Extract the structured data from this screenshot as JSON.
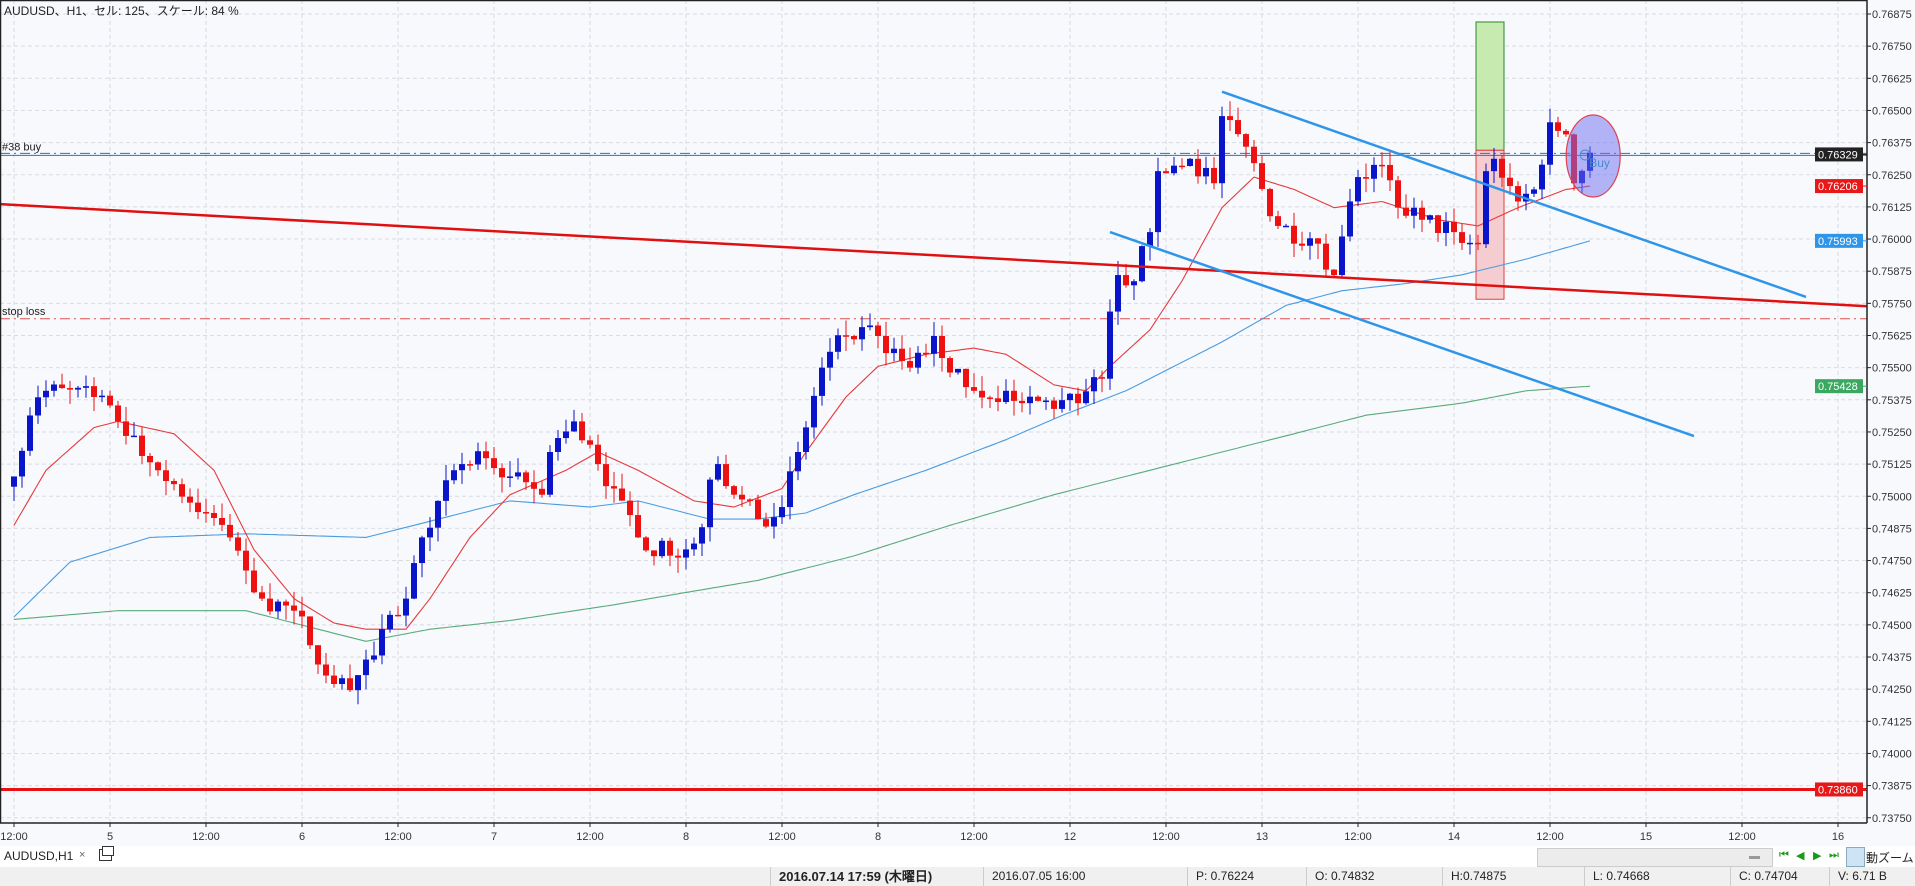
{
  "header": {
    "title": "AUDUSD、H1、セル: 125、スケール: 84 %"
  },
  "colors": {
    "bull": "#0a14c8",
    "bear": "#ee1111",
    "ma_fast": "#e8393b",
    "ma_mid": "#4a9be0",
    "ma_slow": "#5aaa7a",
    "trend_blue": "#2f95e8",
    "trend_red": "#e01010"
  },
  "chart_data": {
    "type": "candlestick",
    "symbol": "AUDUSD",
    "timeframe": "H1",
    "price_range": [
      0.7375,
      0.76875
    ],
    "price_ticks": [
      "0.76875",
      "0.76750",
      "0.76625",
      "0.76500",
      "0.76375",
      "0.76250",
      "0.76125",
      "0.76000",
      "0.75875",
      "0.75750",
      "0.75625",
      "0.75500",
      "0.75375",
      "0.75250",
      "0.75125",
      "0.75000",
      "0.74875",
      "0.74750",
      "0.74625",
      "0.74500",
      "0.74375",
      "0.74250",
      "0.74125",
      "0.74000",
      "0.73875",
      "0.73750"
    ],
    "time_labels": [
      "12:00",
      "5",
      "12:00",
      "6",
      "12:00",
      "7",
      "12:00",
      "8",
      "12:00",
      "8",
      "12:00",
      "12",
      "12:00",
      "13",
      "12:00",
      "14",
      "12:00",
      "15",
      "12:00",
      "16"
    ],
    "close_waypoints": [
      [
        0,
        0.75077
      ],
      [
        2,
        0.75314
      ],
      [
        4,
        0.7541
      ],
      [
        10,
        0.75386
      ],
      [
        13,
        0.75291
      ],
      [
        18,
        0.75101
      ],
      [
        24,
        0.74935
      ],
      [
        27,
        0.7484
      ],
      [
        31,
        0.74602
      ],
      [
        35,
        0.74555
      ],
      [
        40,
        0.7427
      ],
      [
        42,
        0.74246
      ],
      [
        44,
        0.74365
      ],
      [
        46,
        0.74483
      ],
      [
        49,
        0.74602
      ],
      [
        51,
        0.7484
      ],
      [
        53,
        0.74982
      ],
      [
        56,
        0.75125
      ],
      [
        59,
        0.75148
      ],
      [
        62,
        0.75077
      ],
      [
        66,
        0.75006
      ],
      [
        67,
        0.75172
      ],
      [
        70,
        0.75291
      ],
      [
        73,
        0.75125
      ],
      [
        75,
        0.7503
      ],
      [
        78,
        0.7484
      ],
      [
        82,
        0.74769
      ],
      [
        85,
        0.74816
      ],
      [
        88,
        0.75125
      ],
      [
        90,
        0.75006
      ],
      [
        93,
        0.74911
      ],
      [
        96,
        0.74958
      ],
      [
        98,
        0.75172
      ],
      [
        101,
        0.755
      ],
      [
        104,
        0.75623
      ],
      [
        108,
        0.75623
      ],
      [
        112,
        0.755
      ],
      [
        115,
        0.75623
      ],
      [
        117,
        0.75481
      ],
      [
        120,
        0.7541
      ],
      [
        124,
        0.7541
      ],
      [
        126,
        0.75362
      ],
      [
        133,
        0.75362
      ],
      [
        136,
        0.75457
      ],
      [
        137,
        0.75718
      ],
      [
        138,
        0.7586
      ],
      [
        140,
        0.75836
      ],
      [
        142,
        0.76027
      ],
      [
        143,
        0.76264
      ],
      [
        147,
        0.76312
      ],
      [
        150,
        0.76217
      ],
      [
        151,
        0.76478
      ],
      [
        154,
        0.76359
      ],
      [
        158,
        0.76051
      ],
      [
        162,
        0.76003
      ],
      [
        165,
        0.7586
      ],
      [
        168,
        0.76241
      ],
      [
        171,
        0.76288
      ],
      [
        173,
        0.76122
      ],
      [
        176,
        0.76075
      ],
      [
        180,
        0.76027
      ],
      [
        183,
        0.7598
      ],
      [
        184,
        0.76264
      ],
      [
        185,
        0.76312
      ],
      [
        188,
        0.76146
      ],
      [
        190,
        0.76193
      ],
      [
        192,
        0.76454
      ],
      [
        194,
        0.76407
      ],
      [
        195,
        0.76217
      ],
      [
        197,
        0.76336
      ]
    ],
    "ma_fast": [
      [
        0,
        0.74887
      ],
      [
        4,
        0.75101
      ],
      [
        10,
        0.75267
      ],
      [
        13,
        0.75291
      ],
      [
        20,
        0.75243
      ],
      [
        25,
        0.75101
      ],
      [
        30,
        0.74792
      ],
      [
        35,
        0.74602
      ],
      [
        40,
        0.74507
      ],
      [
        44,
        0.74483
      ],
      [
        49,
        0.74483
      ],
      [
        52,
        0.74602
      ],
      [
        57,
        0.7484
      ],
      [
        62,
        0.75006
      ],
      [
        69,
        0.75101
      ],
      [
        73,
        0.75172
      ],
      [
        78,
        0.75101
      ],
      [
        85,
        0.74982
      ],
      [
        90,
        0.74958
      ],
      [
        96,
        0.7503
      ],
      [
        99,
        0.75172
      ],
      [
        104,
        0.75386
      ],
      [
        108,
        0.75505
      ],
      [
        114,
        0.75552
      ],
      [
        120,
        0.75576
      ],
      [
        124,
        0.75552
      ],
      [
        130,
        0.75433
      ],
      [
        134,
        0.7541
      ],
      [
        137,
        0.75505
      ],
      [
        142,
        0.75647
      ],
      [
        146,
        0.75837
      ],
      [
        151,
        0.76122
      ],
      [
        155,
        0.76241
      ],
      [
        160,
        0.76193
      ],
      [
        165,
        0.76122
      ],
      [
        171,
        0.76146
      ],
      [
        178,
        0.76075
      ],
      [
        183,
        0.76051
      ],
      [
        188,
        0.76122
      ],
      [
        194,
        0.76193
      ],
      [
        197,
        0.76206
      ]
    ],
    "ma_mid": [
      [
        0,
        0.74531
      ],
      [
        7,
        0.74744
      ],
      [
        17,
        0.7484
      ],
      [
        29,
        0.74854
      ],
      [
        44,
        0.7484
      ],
      [
        50,
        0.74887
      ],
      [
        62,
        0.74982
      ],
      [
        72,
        0.74958
      ],
      [
        78,
        0.74982
      ],
      [
        87,
        0.74911
      ],
      [
        93,
        0.74911
      ],
      [
        99,
        0.74935
      ],
      [
        105,
        0.75006
      ],
      [
        114,
        0.75101
      ],
      [
        124,
        0.7522
      ],
      [
        131,
        0.75314
      ],
      [
        139,
        0.7541
      ],
      [
        145,
        0.75505
      ],
      [
        151,
        0.756
      ],
      [
        159,
        0.75742
      ],
      [
        166,
        0.75799
      ],
      [
        174,
        0.75827
      ],
      [
        181,
        0.75861
      ],
      [
        189,
        0.75922
      ],
      [
        197,
        0.75993
      ]
    ],
    "ma_slow": [
      [
        0,
        0.74521
      ],
      [
        13,
        0.74555
      ],
      [
        29,
        0.74555
      ],
      [
        38,
        0.74483
      ],
      [
        44,
        0.74436
      ],
      [
        52,
        0.74483
      ],
      [
        62,
        0.74517
      ],
      [
        75,
        0.74578
      ],
      [
        84,
        0.74626
      ],
      [
        93,
        0.74673
      ],
      [
        105,
        0.74768
      ],
      [
        117,
        0.74887
      ],
      [
        130,
        0.75006
      ],
      [
        142,
        0.75101
      ],
      [
        151,
        0.75172
      ],
      [
        160,
        0.75243
      ],
      [
        169,
        0.75315
      ],
      [
        181,
        0.75362
      ],
      [
        189,
        0.7541
      ],
      [
        197,
        0.75428
      ]
    ],
    "trendlines": [
      {
        "name": "long-resistance-line",
        "color": "#e01010",
        "from": [
          -2,
          0.76136
        ],
        "to": [
          238,
          0.75728
        ]
      },
      {
        "name": "channel-upper-line",
        "color": "#2f95e8",
        "from": [
          151,
          0.76573
        ],
        "to": [
          224,
          0.75775
        ]
      },
      {
        "name": "channel-lower-line",
        "color": "#2f95e8",
        "from": [
          137,
          0.76027
        ],
        "to": [
          210,
          0.75234
        ]
      }
    ],
    "horizontal_lines": [
      {
        "name": "order-buy-line",
        "label": "#38 buy",
        "price": 0.76329,
        "color": "#2a6fd0"
      },
      {
        "name": "stop-loss-line",
        "label": "stop loss",
        "price": 0.7569,
        "color": "#e05050"
      },
      {
        "name": "support-line",
        "label": "",
        "price": 0.7386,
        "color": "#e81010"
      }
    ],
    "rectangles": [
      {
        "name": "target-rectangle",
        "from": [
          183,
          0.76844
        ],
        "to": [
          186,
          0.76345
        ],
        "fill": "#c6eab0",
        "stroke": "#2a8a2a"
      },
      {
        "name": "risk-rectangle",
        "from": [
          183,
          0.76345
        ],
        "to": [
          186,
          0.75766
        ],
        "fill": "#f5cdd0",
        "stroke": "#e04040"
      }
    ],
    "buy_marker": {
      "label": "Buy",
      "index": 197.4,
      "price": 0.76323
    },
    "price_badges": [
      {
        "text": "0.76329",
        "price": 0.76329,
        "bg": "#222222"
      },
      {
        "text": "0.76206",
        "price": 0.76206,
        "bg": "#e81818"
      },
      {
        "text": "0.75993",
        "price": 0.75993,
        "bg": "#2f95e8"
      },
      {
        "text": "0.75428",
        "price": 0.75428,
        "bg": "#3aa860"
      },
      {
        "text": "0.73860",
        "price": 0.7386,
        "bg": "#e81818"
      }
    ]
  },
  "tabbar": {
    "tab_label": "AUDUSD,H1",
    "close": "×",
    "auto_zoom": "動ズーム",
    "nav": [
      "⏮",
      "◀",
      "▶",
      "⏭"
    ]
  },
  "status": {
    "datetime": "2016.07.14 17:59 (木曜日)",
    "bar_time": "2016.07.05 16:00",
    "price": "P: 0.76224",
    "open": "O: 0.74832",
    "high": "H:0.74875",
    "low": "L: 0.74668",
    "close": "C: 0.74704",
    "volume": "V: 6.71 B"
  }
}
